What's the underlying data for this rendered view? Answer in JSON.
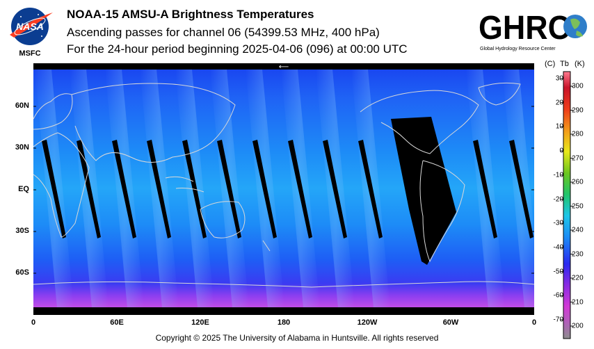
{
  "header": {
    "title": "NOAA-15 AMSU-A Brightness Temperatures",
    "subtitle": "Ascending passes for channel 06 (54399.53 MHz, 400 hPa)",
    "period": "For the 24-hour period beginning 2025-04-06 (096) at 00:00 UTC"
  },
  "logos": {
    "nasa_text": "NASA",
    "nasa_center": "MSFC",
    "ghrc_text": "GHRC",
    "ghrc_name": "Global Hydrology Resource Center"
  },
  "map": {
    "lat_labels": [
      "60N",
      "30N",
      "EQ",
      "30S",
      "60S"
    ],
    "lon_labels": [
      "0",
      "60E",
      "120E",
      "180",
      "120W",
      "60W",
      "0"
    ],
    "arrow_glyph": "⟵"
  },
  "colorbar": {
    "header_c": "(C)",
    "header_tb": "Tb",
    "header_k": "(K)",
    "celsius_ticks": [
      "30",
      "20",
      "10",
      "0",
      "-10",
      "-20",
      "-30",
      "-40",
      "-50",
      "-60",
      "-70"
    ],
    "kelvin_ticks": [
      "300",
      "290",
      "280",
      "270",
      "260",
      "250",
      "240",
      "230",
      "220",
      "210",
      "200"
    ]
  },
  "footer": {
    "copyright": "Copyright © 2025 The University of Alabama in Huntsville.  All rights reserved"
  },
  "colors": {
    "ocean_blue": "#1e6cf5",
    "polar_purple": "#b44cf0",
    "swath_gap": "#000000",
    "coastline": "#d8d8d8"
  }
}
